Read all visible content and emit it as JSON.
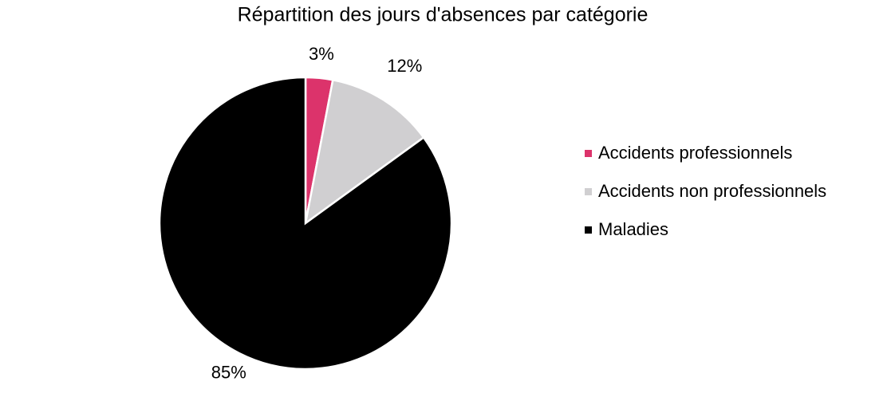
{
  "chart_data": {
    "type": "pie",
    "title": "Répartition des jours d'absences par catégorie",
    "categories": [
      "Accidents professionnels",
      "Accidents non professionnels",
      "Maladies"
    ],
    "values": [
      3,
      12,
      85
    ],
    "value_labels": [
      "3%",
      "12%",
      "85%"
    ],
    "colors": [
      "#dc336b",
      "#d0cfd1",
      "#000000"
    ],
    "legend": "right"
  }
}
